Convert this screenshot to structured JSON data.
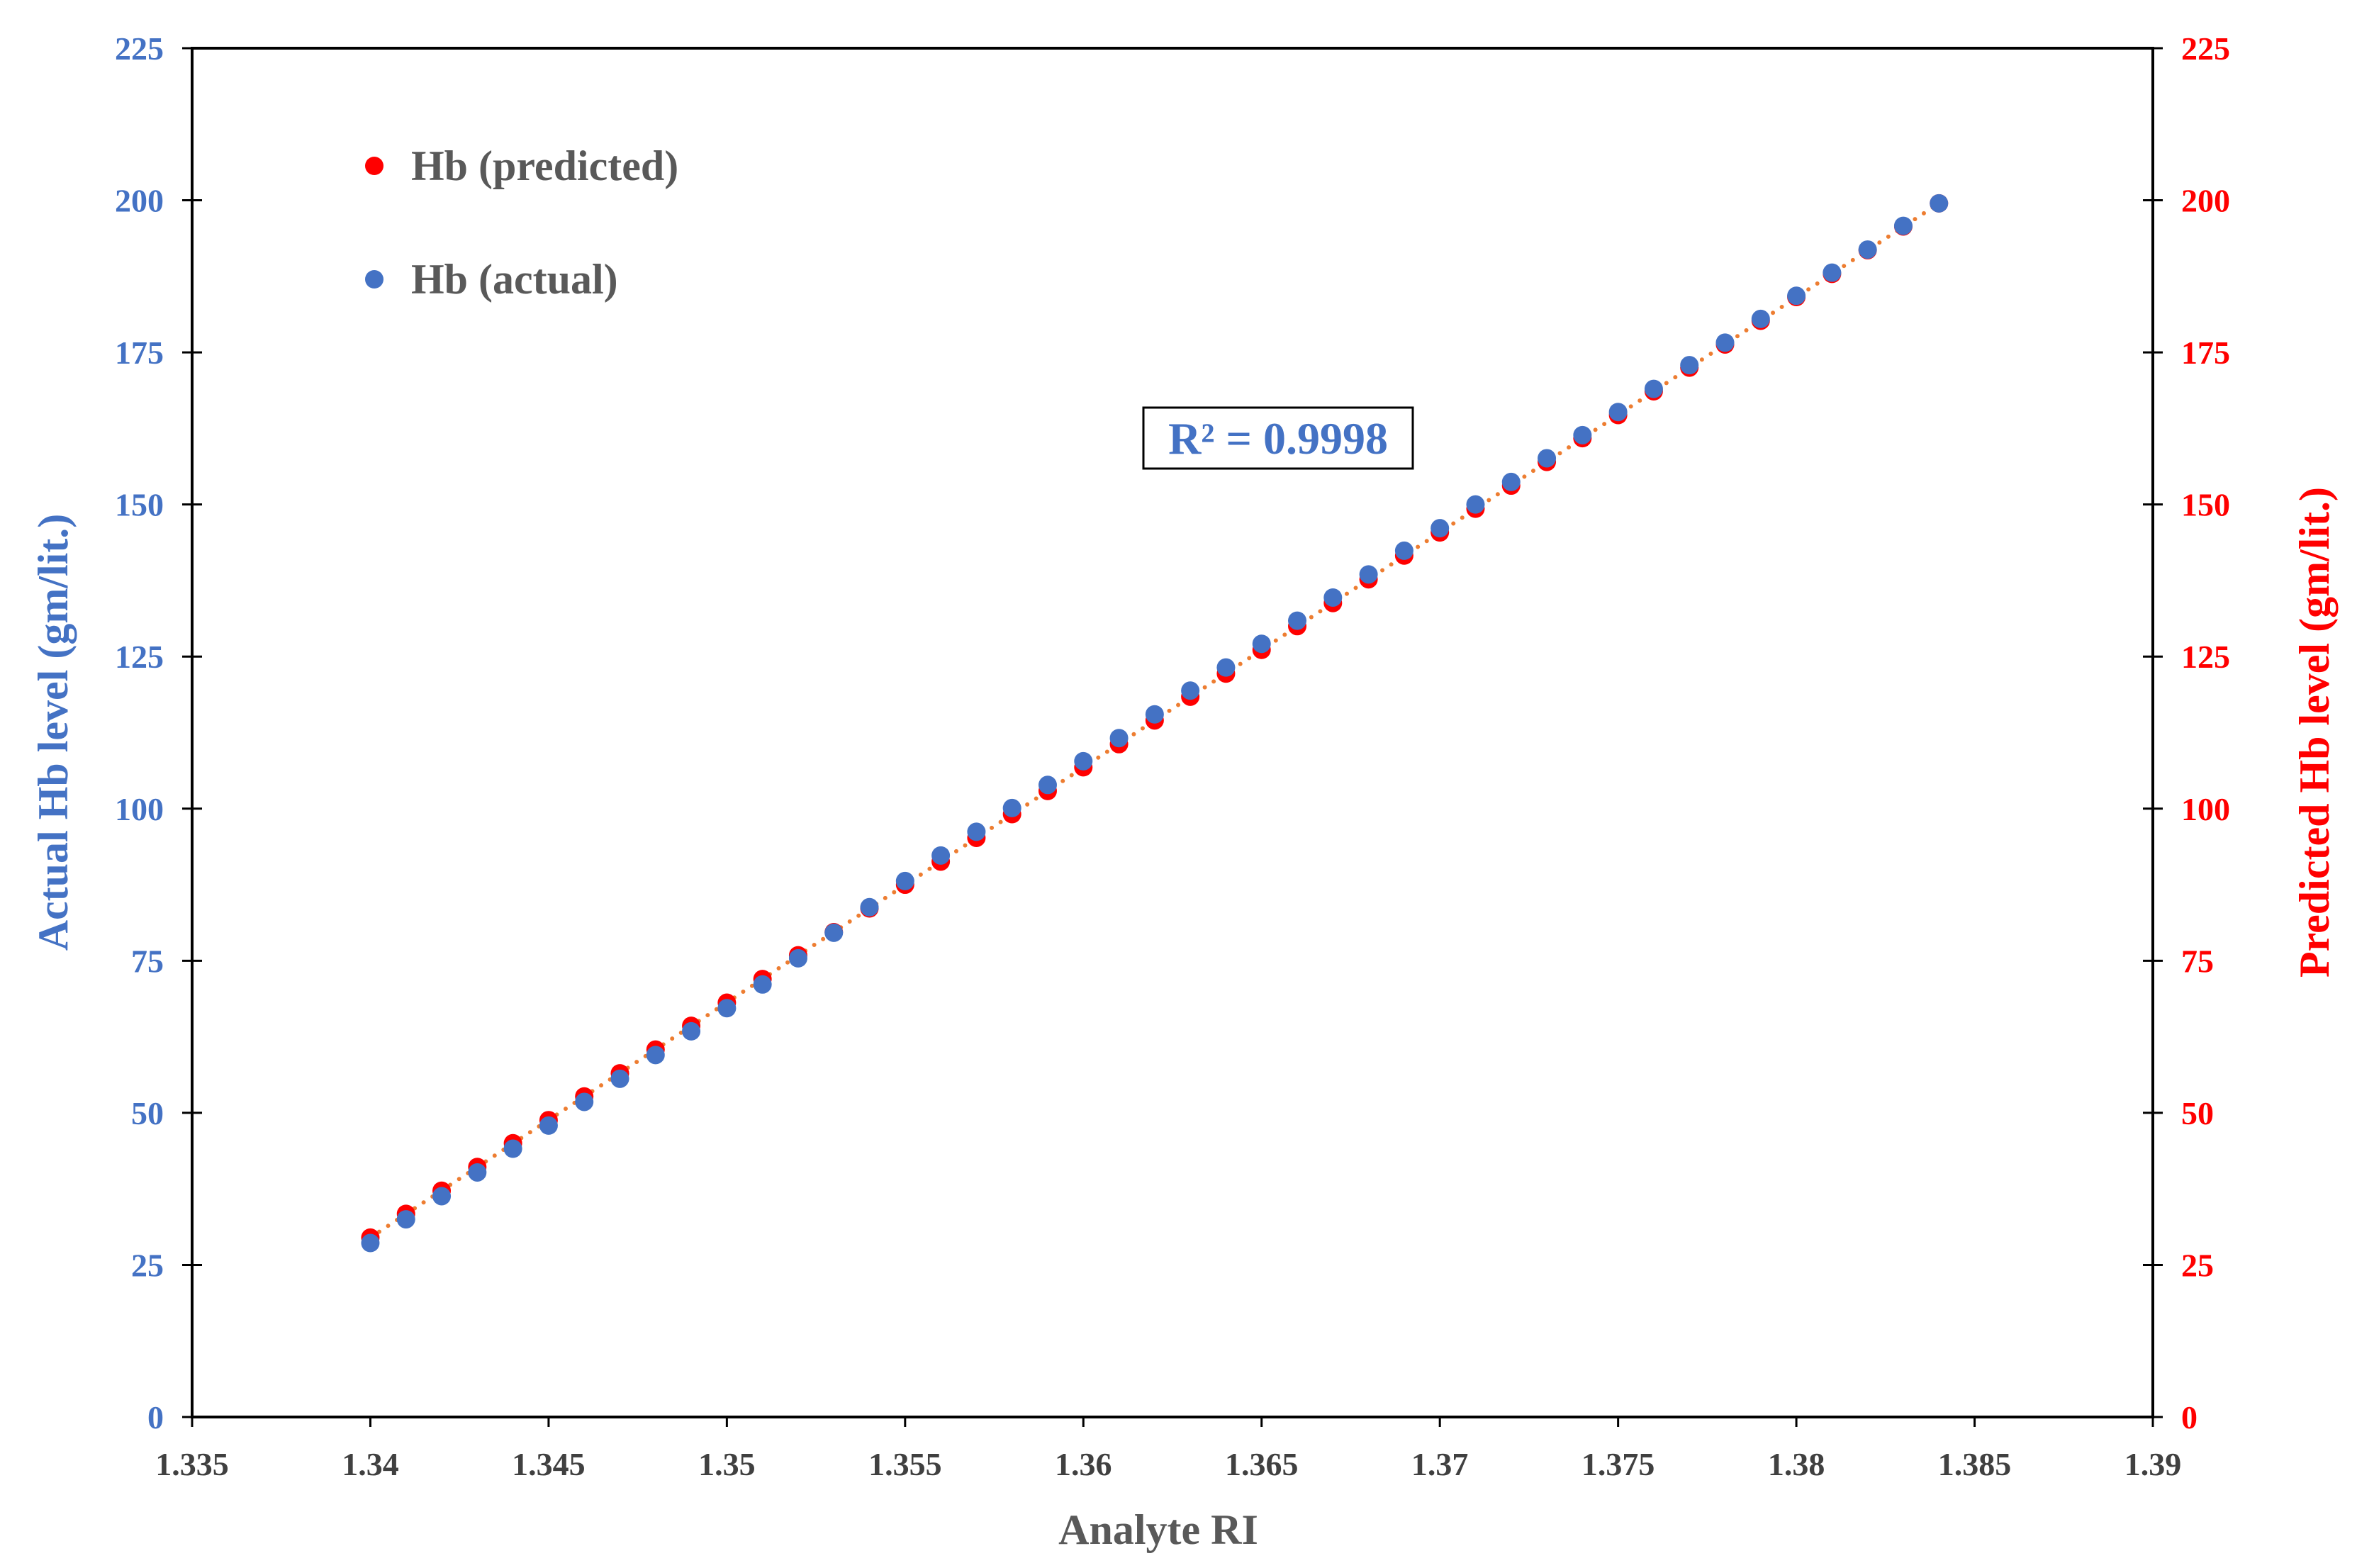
{
  "chart_data": {
    "type": "scatter",
    "xlabel": "Analyte RI",
    "ylabel_left": "Actual Hb level (gm/lit.)",
    "ylabel_right": "Predicted Hb level (gm/lit.)",
    "xlim": [
      1.335,
      1.39
    ],
    "ylim": [
      0,
      225
    ],
    "ylim_right": [
      0,
      225
    ],
    "x_ticks": [
      "1.335",
      "1.34",
      "1.345",
      "1.35",
      "1.355",
      "1.36",
      "1.365",
      "1.37",
      "1.375",
      "1.38",
      "1.385",
      "1.39"
    ],
    "y_ticks": [
      "0",
      "25",
      "50",
      "75",
      "100",
      "125",
      "150",
      "175",
      "200",
      "225"
    ],
    "grid": false,
    "legend_placement": "top-left",
    "annotation": "R² = 0.9998",
    "colors": {
      "actual": "#4472C4",
      "predicted": "#FF0000",
      "trendline": "#ED7D31",
      "axis_text": "#404040",
      "title_text": "#595959"
    },
    "x": [
      1.34,
      1.341,
      1.342,
      1.343,
      1.344,
      1.345,
      1.346,
      1.347,
      1.348,
      1.349,
      1.35,
      1.351,
      1.352,
      1.353,
      1.354,
      1.355,
      1.356,
      1.357,
      1.358,
      1.359,
      1.36,
      1.361,
      1.362,
      1.363,
      1.364,
      1.365,
      1.366,
      1.367,
      1.368,
      1.369,
      1.37,
      1.371,
      1.372,
      1.373,
      1.374,
      1.375,
      1.376,
      1.377,
      1.378,
      1.379,
      1.38,
      1.381,
      1.382,
      1.383,
      1.384
    ],
    "series": [
      {
        "name": "Hb (predicted)",
        "axis": "right",
        "values": [
          29.5,
          33.4,
          37.2,
          41.1,
          45.0,
          48.8,
          52.7,
          56.5,
          60.4,
          64.3,
          68.1,
          72.0,
          75.9,
          79.7,
          83.6,
          87.5,
          91.3,
          95.2,
          99.1,
          102.9,
          106.8,
          110.6,
          114.5,
          118.4,
          122.2,
          126.1,
          130.0,
          133.8,
          137.7,
          141.6,
          145.4,
          149.3,
          153.1,
          157.0,
          160.9,
          164.7,
          168.6,
          172.5,
          176.3,
          180.2,
          184.1,
          187.9,
          191.8,
          195.7,
          199.5
        ]
      },
      {
        "name": "Hb (actual)",
        "axis": "left",
        "values": [
          28.6,
          32.5,
          36.3,
          40.2,
          44.1,
          47.9,
          51.8,
          55.6,
          59.5,
          63.4,
          67.2,
          71.1,
          75.4,
          79.6,
          83.8,
          88.1,
          92.3,
          96.2,
          100.1,
          103.9,
          107.8,
          111.6,
          115.5,
          119.4,
          123.2,
          127.1,
          130.9,
          134.7,
          138.5,
          142.4,
          146.1,
          150.0,
          153.7,
          157.6,
          161.4,
          165.2,
          169.0,
          172.9,
          176.6,
          180.5,
          184.3,
          188.1,
          191.9,
          195.8,
          199.5
        ]
      }
    ],
    "trendline": {
      "style": "dotted",
      "x": [
        1.34,
        1.384
      ],
      "y": [
        29.5,
        199.5
      ]
    }
  }
}
